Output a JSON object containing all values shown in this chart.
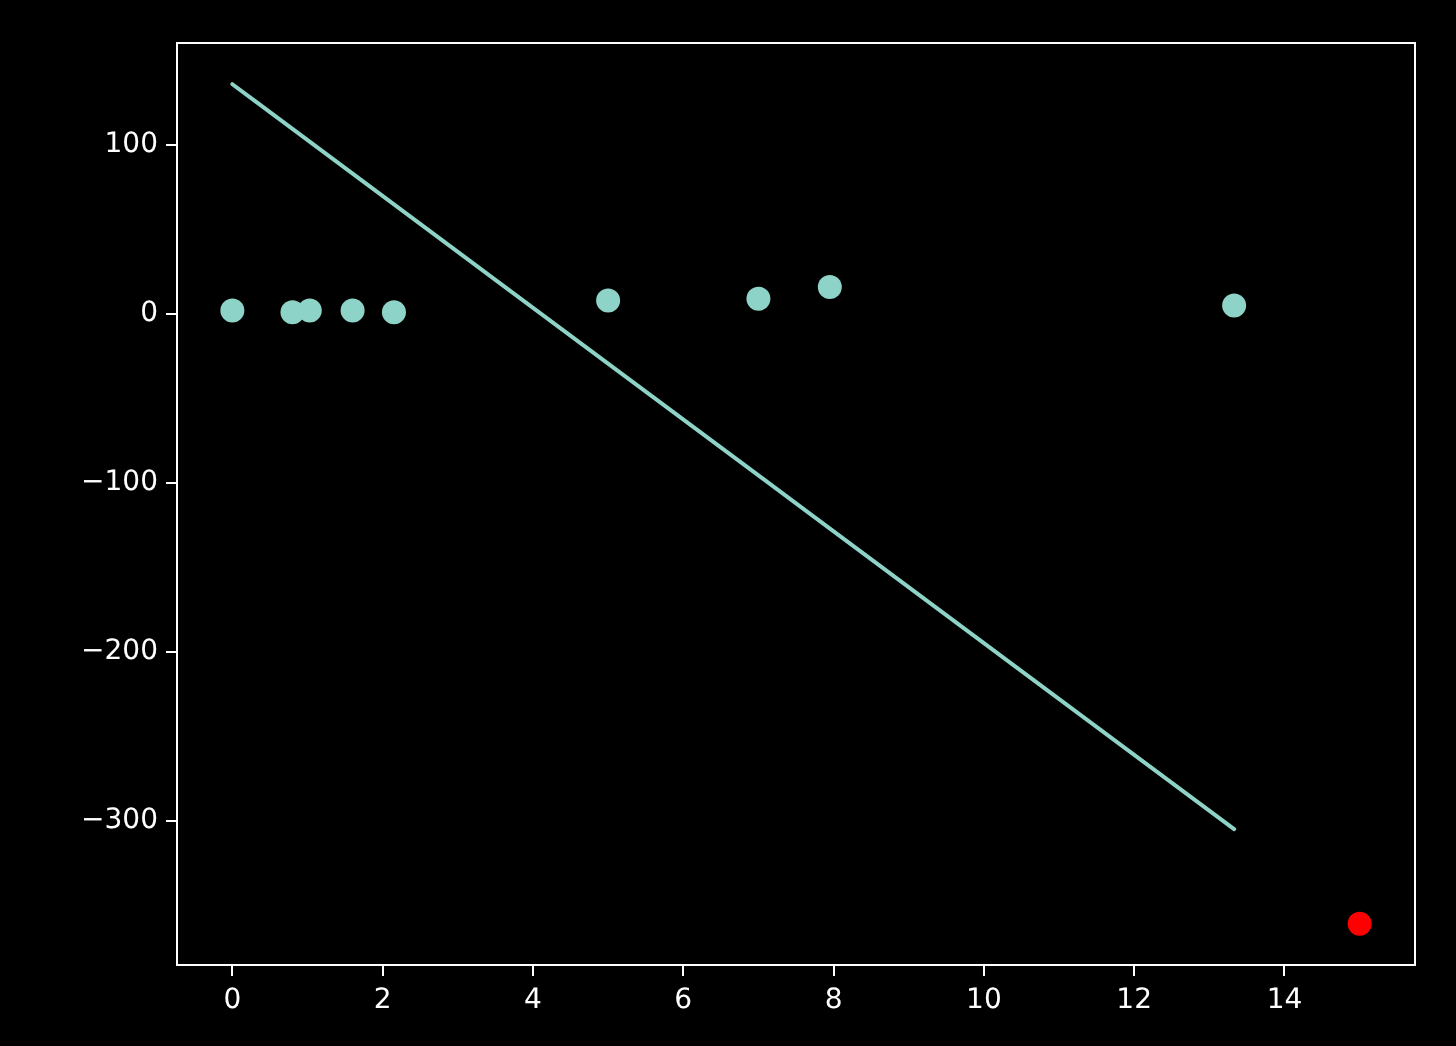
{
  "chart_data": {
    "type": "scatter",
    "xlim": [
      -0.75,
      15.75
    ],
    "ylim": [
      -386,
      161
    ],
    "xticks": [
      0,
      2,
      4,
      6,
      8,
      10,
      12,
      14
    ],
    "yticks": [
      {
        "value": -300,
        "label": "−300"
      },
      {
        "value": -200,
        "label": "−200"
      },
      {
        "value": -100,
        "label": "−100"
      },
      0,
      100
    ],
    "marker": "circle",
    "series": [
      {
        "color": "#8dd3c7",
        "x": [
          0,
          0.8,
          1.03,
          1.6,
          2.15,
          5,
          7,
          7.95,
          13.33
        ],
        "values": [
          2,
          1,
          2,
          2,
          1,
          8,
          9,
          16,
          5
        ]
      },
      {
        "type": "line",
        "marker": "none",
        "color": "#8dd3c7",
        "x": [
          0,
          13.33
        ],
        "values": [
          136,
          -305
        ]
      },
      {
        "color": "#ff0000",
        "x": [
          15
        ],
        "values": [
          -361
        ]
      }
    ]
  }
}
